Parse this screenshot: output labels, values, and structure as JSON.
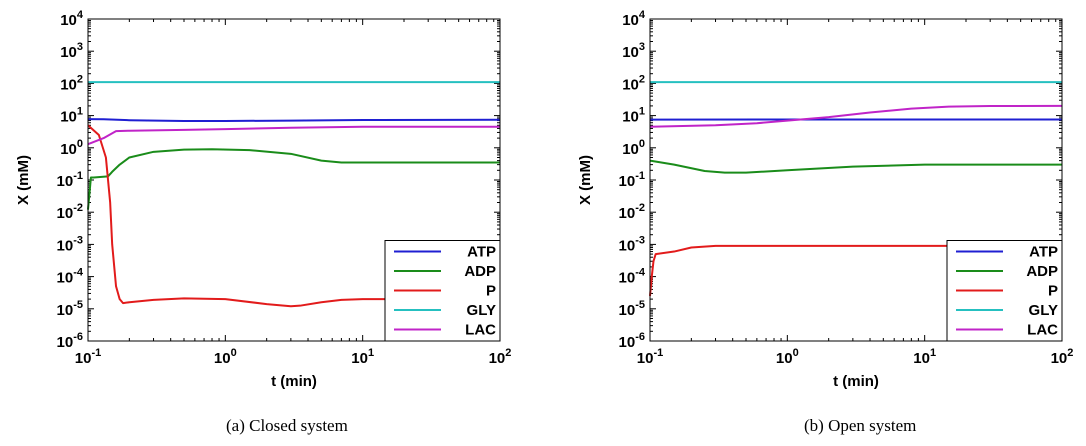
{
  "colors": {
    "ATP": "#1f1fd2",
    "ADP": "#1a8c1a",
    "P": "#e21b1b",
    "GLY": "#25c0c0",
    "LAC": "#c024c8"
  },
  "chart_data": [
    {
      "type": "line",
      "caption": "(a)  Closed system",
      "xlabel": "t (min)",
      "ylabel": "X (mM)",
      "xscale": "log",
      "yscale": "log",
      "xlim": [
        0.1,
        100
      ],
      "ylim": [
        1e-06,
        10000
      ],
      "x_ticks": [
        {
          "base": "10",
          "exp": "-1"
        },
        {
          "base": "10",
          "exp": "0"
        },
        {
          "base": "10",
          "exp": "1"
        },
        {
          "base": "10",
          "exp": "2"
        }
      ],
      "y_ticks": [
        {
          "base": "10",
          "exp": "-6"
        },
        {
          "base": "10",
          "exp": "-5"
        },
        {
          "base": "10",
          "exp": "-4"
        },
        {
          "base": "10",
          "exp": "-3"
        },
        {
          "base": "10",
          "exp": "-2"
        },
        {
          "base": "10",
          "exp": "-1"
        },
        {
          "base": "10",
          "exp": "0"
        },
        {
          "base": "10",
          "exp": "1"
        },
        {
          "base": "10",
          "exp": "2"
        },
        {
          "base": "10",
          "exp": "3"
        },
        {
          "base": "10",
          "exp": "4"
        }
      ],
      "legend": "bottom-right",
      "series": [
        {
          "name": "ATP",
          "x": [
            0.1,
            0.13,
            0.2,
            0.5,
            1,
            3,
            10,
            100
          ],
          "y": [
            7.8,
            7.7,
            7.2,
            6.8,
            6.8,
            7.0,
            7.3,
            7.4
          ]
        },
        {
          "name": "ADP",
          "x": [
            0.1,
            0.105,
            0.11,
            0.14,
            0.15,
            0.17,
            0.2,
            0.3,
            0.5,
            0.8,
            1.5,
            3,
            5,
            7,
            10,
            100
          ],
          "y": [
            0.012,
            0.12,
            0.12,
            0.13,
            0.18,
            0.3,
            0.5,
            0.75,
            0.88,
            0.9,
            0.85,
            0.65,
            0.4,
            0.35,
            0.35,
            0.35
          ]
        },
        {
          "name": "P",
          "x": [
            0.1,
            0.12,
            0.135,
            0.145,
            0.15,
            0.16,
            0.17,
            0.18,
            0.2,
            0.3,
            0.5,
            1,
            2,
            3,
            3.5,
            5,
            7,
            10,
            100
          ],
          "y": [
            5.0,
            2.5,
            0.5,
            0.02,
            0.001,
            5e-05,
            2e-05,
            1.5e-05,
            1.6e-05,
            1.9e-05,
            2.1e-05,
            2e-05,
            1.4e-05,
            1.2e-05,
            1.25e-05,
            1.6e-05,
            1.9e-05,
            2e-05,
            2e-05
          ]
        },
        {
          "name": "GLY",
          "x": [
            0.1,
            100
          ],
          "y": [
            110,
            110
          ]
        },
        {
          "name": "LAC",
          "x": [
            0.1,
            0.13,
            0.16,
            0.2,
            0.5,
            1,
            3,
            10,
            100
          ],
          "y": [
            1.3,
            2.0,
            3.3,
            3.4,
            3.6,
            3.8,
            4.2,
            4.5,
            4.5
          ]
        }
      ]
    },
    {
      "type": "line",
      "caption": "(b)  Open system",
      "xlabel": "t (min)",
      "ylabel": "X (mM)",
      "xscale": "log",
      "yscale": "log",
      "xlim": [
        0.1,
        100
      ],
      "ylim": [
        1e-06,
        10000
      ],
      "x_ticks": [
        {
          "base": "10",
          "exp": "-1"
        },
        {
          "base": "10",
          "exp": "0"
        },
        {
          "base": "10",
          "exp": "1"
        },
        {
          "base": "10",
          "exp": "2"
        }
      ],
      "y_ticks": [
        {
          "base": "10",
          "exp": "-6"
        },
        {
          "base": "10",
          "exp": "-5"
        },
        {
          "base": "10",
          "exp": "-4"
        },
        {
          "base": "10",
          "exp": "-3"
        },
        {
          "base": "10",
          "exp": "-2"
        },
        {
          "base": "10",
          "exp": "-1"
        },
        {
          "base": "10",
          "exp": "0"
        },
        {
          "base": "10",
          "exp": "1"
        },
        {
          "base": "10",
          "exp": "2"
        },
        {
          "base": "10",
          "exp": "3"
        },
        {
          "base": "10",
          "exp": "4"
        }
      ],
      "legend": "bottom-right",
      "series": [
        {
          "name": "ATP",
          "x": [
            0.1,
            1,
            100
          ],
          "y": [
            7.5,
            7.6,
            7.6
          ]
        },
        {
          "name": "ADP",
          "x": [
            0.1,
            0.15,
            0.25,
            0.35,
            0.5,
            1,
            3,
            10,
            100
          ],
          "y": [
            0.4,
            0.3,
            0.19,
            0.17,
            0.17,
            0.2,
            0.26,
            0.3,
            0.3
          ]
        },
        {
          "name": "P",
          "x": [
            0.1,
            0.103,
            0.106,
            0.11,
            0.15,
            0.2,
            0.3,
            0.5,
            1,
            10,
            100
          ],
          "y": [
            2.5e-05,
            0.0001,
            0.0003,
            0.0005,
            0.0006,
            0.0008,
            0.0009,
            0.0009,
            0.0009,
            0.0009,
            0.0009
          ]
        },
        {
          "name": "GLY",
          "x": [
            0.1,
            100
          ],
          "y": [
            110,
            110
          ]
        },
        {
          "name": "LAC",
          "x": [
            0.1,
            0.3,
            0.6,
            1,
            2,
            4,
            8,
            15,
            30,
            100
          ],
          "y": [
            4.5,
            5.0,
            5.8,
            7.0,
            9.0,
            12.5,
            16.5,
            19.0,
            19.8,
            20.0
          ]
        }
      ]
    }
  ]
}
